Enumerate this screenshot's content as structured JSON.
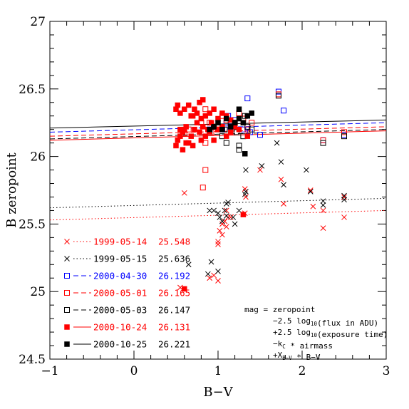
{
  "chart_data": {
    "type": "scatter",
    "xlabel": "B−V",
    "ylabel": "B zeropoint",
    "xlim": [
      -1,
      3
    ],
    "ylim": [
      24.5,
      27
    ],
    "x_ticks": [
      "−1",
      "0",
      "1",
      "2",
      "3"
    ],
    "y_ticks": [
      "24.5",
      "25",
      "25.5",
      "26",
      "26.5",
      "27"
    ],
    "series": [
      {
        "name": "1999-05-14",
        "zeropoint_label": "25.548",
        "color": "#ff0000",
        "marker": "cross",
        "line_style": "dotted",
        "line": {
          "x": [
            -1,
            3
          ],
          "y": [
            25.53,
            25.6
          ]
        },
        "points": [
          [
            0.55,
            25.03
          ],
          [
            0.9,
            25.1
          ],
          [
            1.0,
            25.08
          ],
          [
            0.95,
            25.12
          ],
          [
            1.0,
            25.35
          ],
          [
            1.0,
            25.37
          ],
          [
            1.02,
            25.45
          ],
          [
            1.05,
            25.42
          ],
          [
            1.05,
            25.5
          ],
          [
            1.08,
            25.52
          ],
          [
            1.1,
            25.48
          ],
          [
            1.12,
            25.55
          ],
          [
            1.1,
            25.6
          ],
          [
            1.15,
            25.55
          ],
          [
            1.3,
            25.57
          ],
          [
            1.32,
            25.58
          ],
          [
            1.32,
            25.76
          ],
          [
            1.33,
            25.7
          ],
          [
            1.5,
            25.9
          ],
          [
            1.75,
            25.83
          ],
          [
            1.78,
            25.65
          ],
          [
            2.1,
            25.75
          ],
          [
            2.13,
            25.63
          ],
          [
            2.25,
            25.47
          ],
          [
            2.25,
            25.6
          ],
          [
            2.5,
            25.55
          ],
          [
            2.5,
            25.7
          ],
          [
            0.6,
            25.73
          ]
        ]
      },
      {
        "name": "1999-05-15",
        "zeropoint_label": "25.636",
        "color": "#000000",
        "marker": "cross",
        "line_style": "dotted",
        "line": {
          "x": [
            -1,
            3
          ],
          "y": [
            25.62,
            25.69
          ]
        },
        "points": [
          [
            0.65,
            25.2
          ],
          [
            0.88,
            25.13
          ],
          [
            0.92,
            25.22
          ],
          [
            0.9,
            25.6
          ],
          [
            0.95,
            25.6
          ],
          [
            1.0,
            25.15
          ],
          [
            1.0,
            25.58
          ],
          [
            1.02,
            25.55
          ],
          [
            1.05,
            25.52
          ],
          [
            1.08,
            25.6
          ],
          [
            1.1,
            25.56
          ],
          [
            1.1,
            25.65
          ],
          [
            1.12,
            25.66
          ],
          [
            1.18,
            25.55
          ],
          [
            1.2,
            25.5
          ],
          [
            1.25,
            25.6
          ],
          [
            1.32,
            25.72
          ],
          [
            1.33,
            25.74
          ],
          [
            1.33,
            25.9
          ],
          [
            1.52,
            25.93
          ],
          [
            1.75,
            25.96
          ],
          [
            1.78,
            25.79
          ],
          [
            1.7,
            26.1
          ],
          [
            2.05,
            25.9
          ],
          [
            2.1,
            25.74
          ],
          [
            2.25,
            25.67
          ],
          [
            2.25,
            25.64
          ],
          [
            2.5,
            25.71
          ],
          [
            2.5,
            25.68
          ]
        ]
      },
      {
        "name": "2000-04-30",
        "zeropoint_label": "26.192",
        "color": "#0000ff",
        "marker": "open-square",
        "line_style": "dashed",
        "line": {
          "x": [
            -1,
            3
          ],
          "y": [
            26.18,
            26.25
          ]
        },
        "points": [
          [
            0.9,
            26.2
          ],
          [
            1.05,
            26.2
          ],
          [
            1.1,
            26.25
          ],
          [
            1.12,
            26.3
          ],
          [
            1.15,
            26.22
          ],
          [
            1.2,
            26.27
          ],
          [
            1.3,
            26.2
          ],
          [
            1.35,
            26.43
          ],
          [
            1.38,
            26.18
          ],
          [
            1.5,
            26.16
          ],
          [
            1.72,
            26.48
          ],
          [
            1.78,
            26.34
          ],
          [
            2.25,
            26.12
          ],
          [
            2.5,
            26.16
          ]
        ]
      },
      {
        "name": "2000-05-01",
        "zeropoint_label": "26.165",
        "color": "#ff0000",
        "marker": "open-square",
        "line_style": "dashed",
        "line": {
          "x": [
            -1,
            3
          ],
          "y": [
            26.15,
            26.22
          ]
        },
        "points": [
          [
            0.6,
            26.17
          ],
          [
            0.65,
            26.2
          ],
          [
            0.8,
            26.25
          ],
          [
            0.85,
            26.35
          ],
          [
            0.9,
            26.25
          ],
          [
            0.92,
            26.18
          ],
          [
            0.95,
            26.22
          ],
          [
            1.0,
            26.2
          ],
          [
            1.05,
            26.3
          ],
          [
            1.1,
            26.27
          ],
          [
            1.2,
            26.25
          ],
          [
            1.25,
            26.32
          ],
          [
            1.3,
            26.28
          ],
          [
            1.35,
            26.2
          ],
          [
            1.4,
            26.25
          ],
          [
            1.72,
            26.46
          ],
          [
            2.25,
            26.12
          ],
          [
            2.5,
            26.18
          ],
          [
            0.85,
            25.9
          ],
          [
            0.82,
            25.77
          ],
          [
            0.85,
            26.1
          ]
        ]
      },
      {
        "name": "2000-05-03",
        "zeropoint_label": "26.147",
        "color": "#000000",
        "marker": "open-square",
        "line_style": "dashed",
        "line": {
          "x": [
            -1,
            3
          ],
          "y": [
            26.13,
            26.2
          ]
        },
        "points": [
          [
            0.9,
            26.18
          ],
          [
            0.95,
            26.22
          ],
          [
            1.05,
            26.15
          ],
          [
            1.08,
            26.2
          ],
          [
            1.1,
            26.1
          ],
          [
            1.15,
            26.25
          ],
          [
            1.2,
            26.25
          ],
          [
            1.22,
            26.18
          ],
          [
            1.25,
            26.05
          ],
          [
            1.25,
            26.08
          ],
          [
            1.3,
            26.15
          ],
          [
            1.32,
            26.3
          ],
          [
            1.35,
            26.22
          ],
          [
            1.4,
            26.2
          ],
          [
            1.72,
            26.45
          ],
          [
            2.25,
            26.1
          ],
          [
            2.5,
            26.15
          ]
        ]
      },
      {
        "name": "2000-10-24",
        "zeropoint_label": "26.131",
        "color": "#ff0000",
        "marker": "filled-square",
        "line_style": "solid",
        "line": {
          "x": [
            -1,
            3
          ],
          "y": [
            26.12,
            26.19
          ]
        },
        "points": [
          [
            0.5,
            26.08
          ],
          [
            0.52,
            26.12
          ],
          [
            0.55,
            26.15
          ],
          [
            0.58,
            26.18
          ],
          [
            0.6,
            26.2
          ],
          [
            0.62,
            26.22
          ],
          [
            0.65,
            26.1
          ],
          [
            0.68,
            26.15
          ],
          [
            0.7,
            26.08
          ],
          [
            0.72,
            26.2
          ],
          [
            0.75,
            26.25
          ],
          [
            0.78,
            26.18
          ],
          [
            0.8,
            26.12
          ],
          [
            0.82,
            26.22
          ],
          [
            0.85,
            26.15
          ],
          [
            0.88,
            26.2
          ],
          [
            0.9,
            26.18
          ],
          [
            0.92,
            26.25
          ],
          [
            0.95,
            26.12
          ],
          [
            1.0,
            26.2
          ],
          [
            1.05,
            26.22
          ],
          [
            1.1,
            26.15
          ],
          [
            1.15,
            26.18
          ],
          [
            1.2,
            26.22
          ],
          [
            1.25,
            26.2
          ],
          [
            1.3,
            26.25
          ],
          [
            1.35,
            26.15
          ],
          [
            0.5,
            26.35
          ],
          [
            0.52,
            26.38
          ],
          [
            0.55,
            26.32
          ],
          [
            0.6,
            26.35
          ],
          [
            0.65,
            26.38
          ],
          [
            0.7,
            26.3
          ],
          [
            0.75,
            26.32
          ],
          [
            0.8,
            26.28
          ],
          [
            0.85,
            26.3
          ],
          [
            0.9,
            26.32
          ],
          [
            0.95,
            26.35
          ],
          [
            1.0,
            26.28
          ],
          [
            1.05,
            26.32
          ],
          [
            1.1,
            26.3
          ],
          [
            1.15,
            26.27
          ],
          [
            0.55,
            26.2
          ],
          [
            0.58,
            26.05
          ],
          [
            0.62,
            26.1
          ],
          [
            0.68,
            26.3
          ],
          [
            0.72,
            26.35
          ],
          [
            0.78,
            26.4
          ],
          [
            0.82,
            26.42
          ],
          [
            1.3,
            25.57
          ],
          [
            0.6,
            25.02
          ]
        ]
      },
      {
        "name": "2000-10-25",
        "zeropoint_label": "26.221",
        "color": "#000000",
        "marker": "filled-square",
        "line_style": "solid",
        "line": {
          "x": [
            -1,
            3
          ],
          "y": [
            26.21,
            26.27
          ]
        },
        "points": [
          [
            0.9,
            26.2
          ],
          [
            0.95,
            26.22
          ],
          [
            1.0,
            26.25
          ],
          [
            1.05,
            26.2
          ],
          [
            1.1,
            26.28
          ],
          [
            1.15,
            26.22
          ],
          [
            1.2,
            26.25
          ],
          [
            1.25,
            26.28
          ],
          [
            1.3,
            26.25
          ],
          [
            1.35,
            26.3
          ],
          [
            1.4,
            26.32
          ],
          [
            1.32,
            26.02
          ],
          [
            1.25,
            26.35
          ]
        ]
      }
    ],
    "annotation": [
      "mag = zeropoint",
      "−2.5 log",
      "10",
      "(flux in ADU)",
      "+2.5 log",
      "10",
      "(exposure time)",
      "−k",
      "C",
      " * airmass",
      "+X",
      "B−V",
      " * B−V"
    ]
  }
}
